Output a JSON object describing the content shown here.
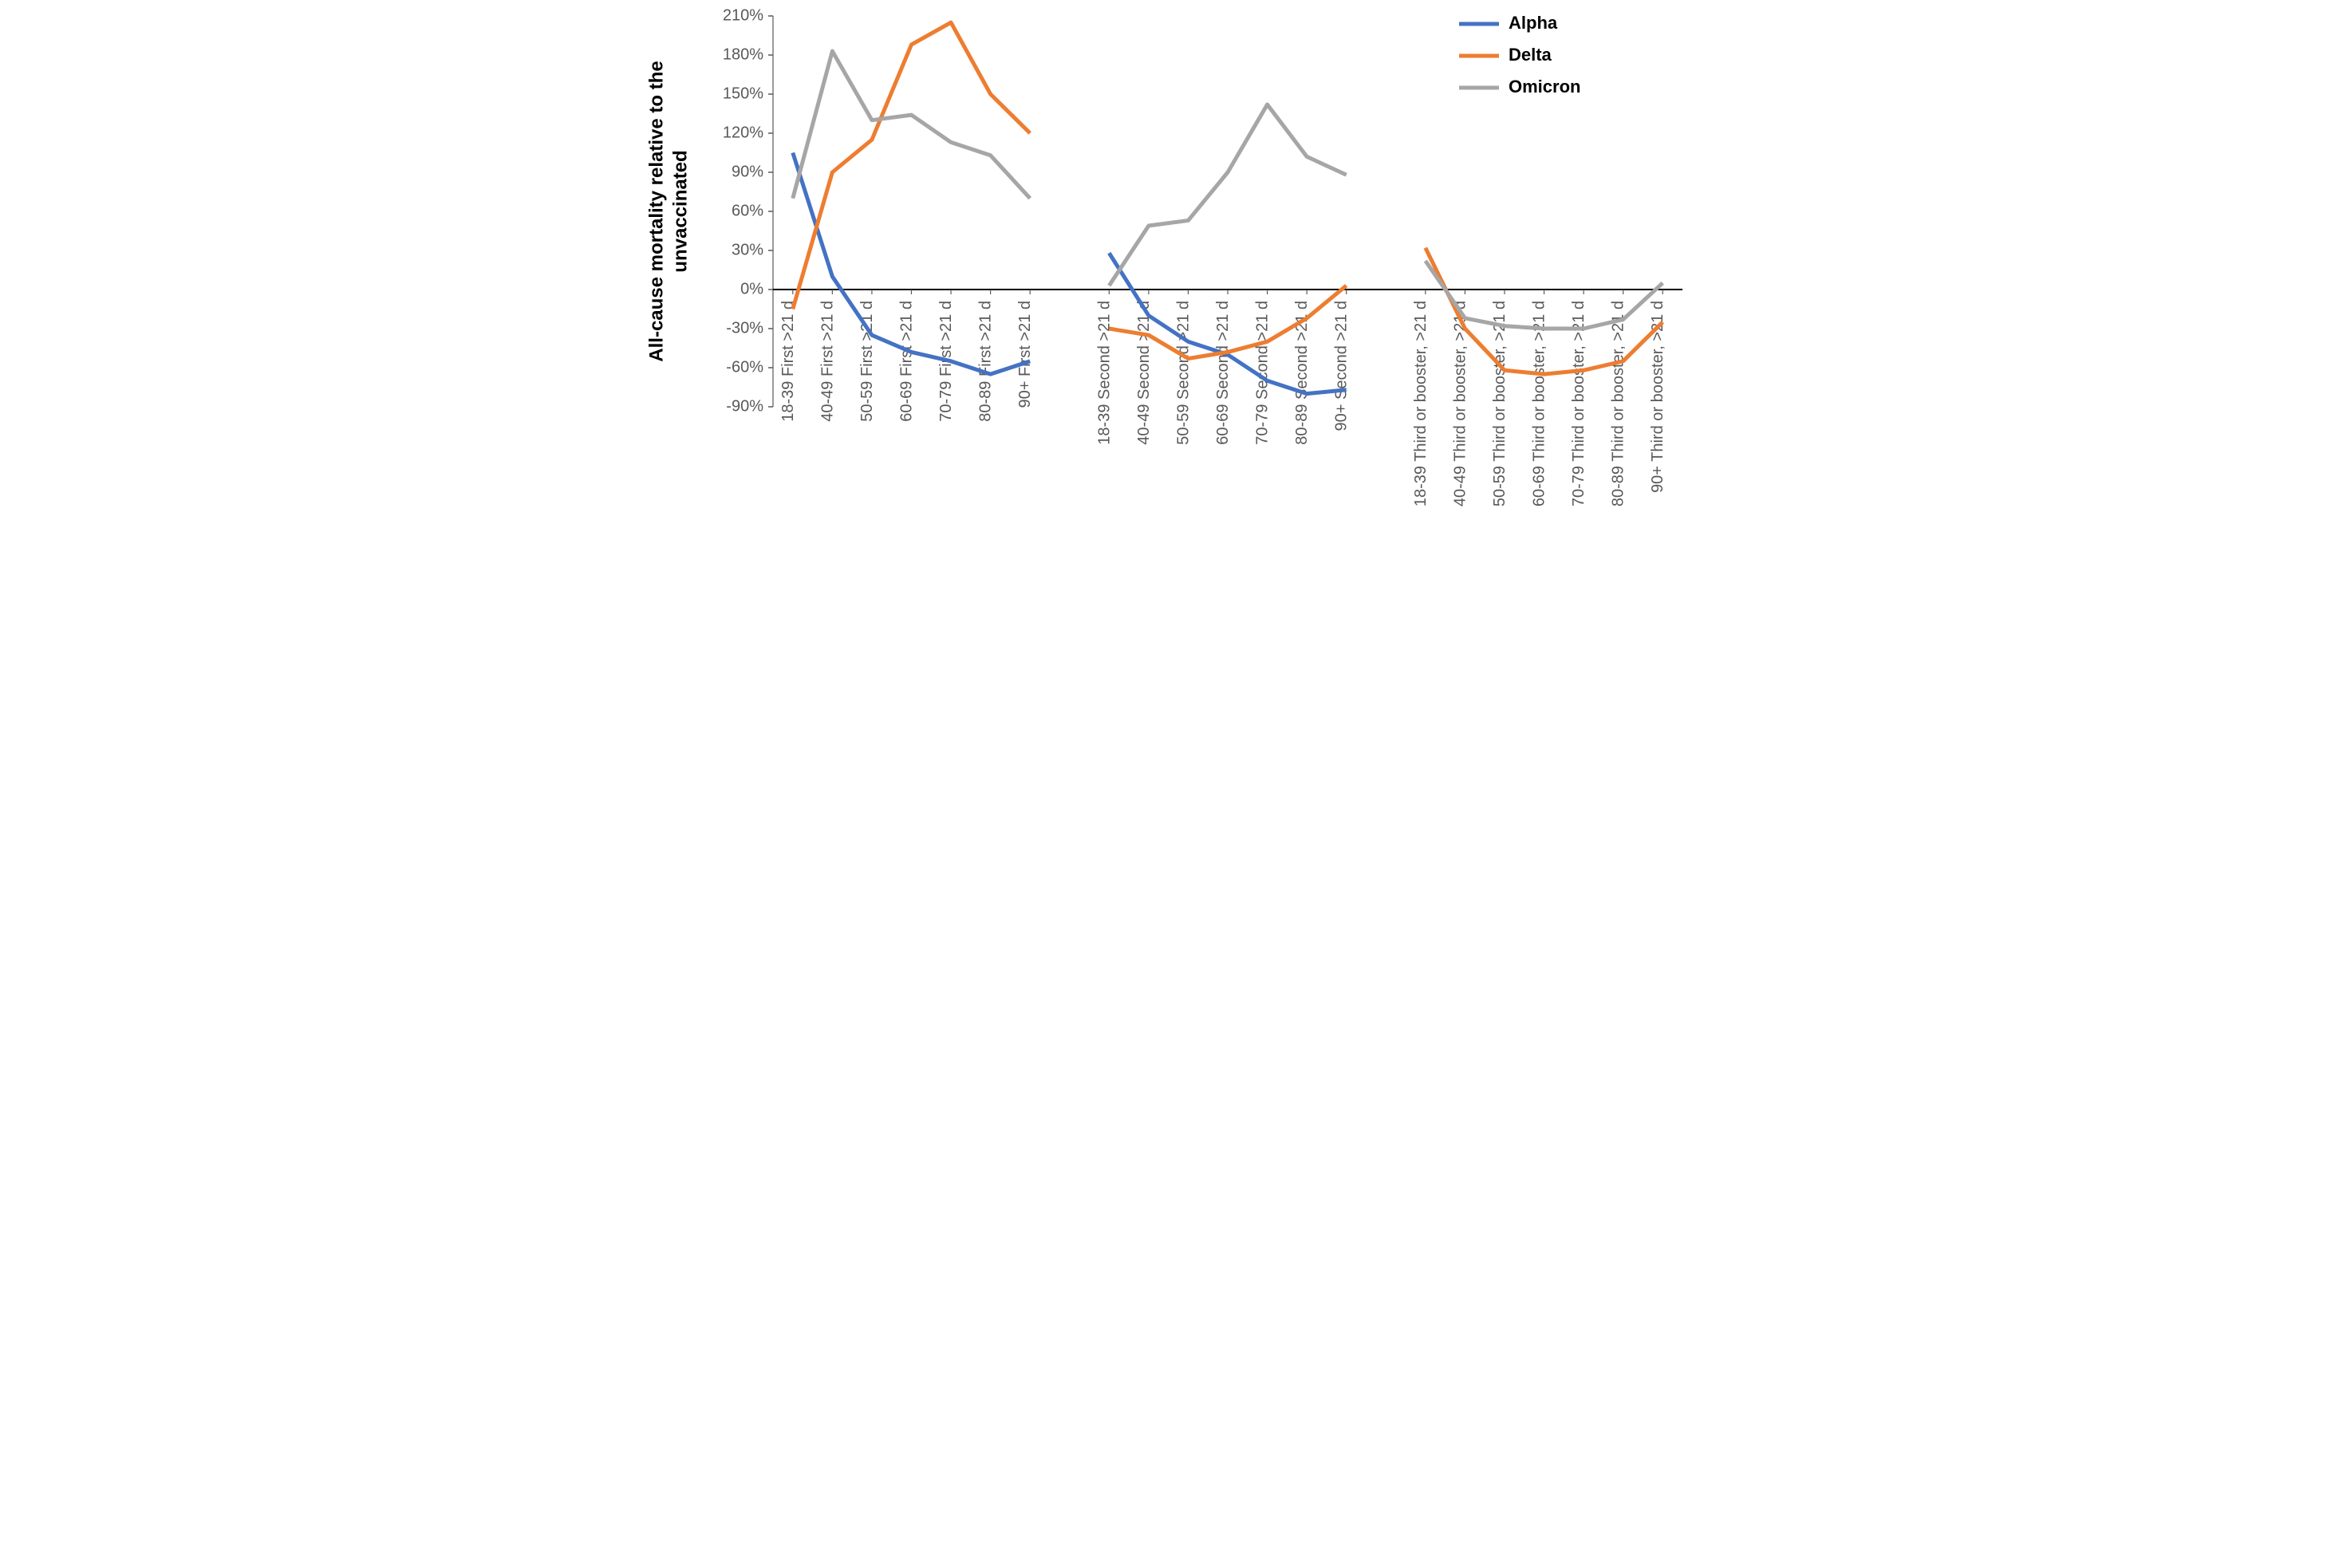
{
  "chart": {
    "type": "line",
    "y_axis_label": "All-cause mortality relative to the\nunvaccinated",
    "y_axis_label_fontsize": 24,
    "y_axis_label_fontweight": 700,
    "ylim": [
      -90,
      210
    ],
    "ytick_step": 30,
    "yticks": [
      -90,
      -60,
      -30,
      0,
      30,
      60,
      90,
      120,
      150,
      180,
      210
    ],
    "ytick_labels": [
      "-90%",
      "-60%",
      "-30%",
      "0%",
      "30%",
      "60%",
      "90%",
      "120%",
      "150%",
      "180%",
      "210%"
    ],
    "tick_font_size": 20,
    "tick_color": "#595959",
    "axis_color": "#000000",
    "grid_color": "#d9d9d9",
    "background_color": "#ffffff",
    "line_width": 5,
    "categories": [
      "18-39 First >21 d",
      "40-49 First >21 d",
      "50-59 First >21 d",
      "60-69 First >21 d",
      "70-79 First >21 d",
      "80-89 First >21 d",
      "90+ First >21 d",
      null,
      "18-39 Second >21 d",
      "40-49 Second >21 d",
      "50-59 Second >21 d",
      "60-69 Second >21 d",
      "70-79 Second >21 d",
      "80-89 Second >21 d",
      "90+ Second >21 d",
      null,
      "18-39 Third or booster, >21 d",
      "40-49 Third or booster, >21 d",
      "50-59 Third or booster, >21 d",
      "60-69 Third or booster, >21 d",
      "70-79 Third or booster, >21 d",
      "80-89 Third or booster, >21 d",
      "90+ Third or booster, >21 d"
    ],
    "series": [
      {
        "name": "Alpha",
        "color": "#4472c4",
        "values": [
          105,
          10,
          -35,
          -48,
          -55,
          -65,
          -55,
          null,
          28,
          -20,
          -40,
          -50,
          -70,
          -80,
          -77,
          null,
          null,
          null,
          null,
          null,
          null,
          null,
          null
        ]
      },
      {
        "name": "Delta",
        "color": "#ed7d31",
        "values": [
          -15,
          90,
          115,
          188,
          205,
          150,
          120,
          null,
          -30,
          -35,
          -53,
          -48,
          -40,
          -22,
          3,
          null,
          32,
          -30,
          -62,
          -65,
          -62,
          -55,
          -25
        ]
      },
      {
        "name": "Omicron",
        "color": "#a6a6a6",
        "values": [
          70,
          183,
          130,
          134,
          113,
          103,
          70,
          null,
          3,
          49,
          53,
          90,
          142,
          102,
          88,
          null,
          22,
          -22,
          -28,
          -30,
          -30,
          -23,
          5
        ]
      }
    ],
    "legend": {
      "position": "top-right",
      "font_size": 22,
      "font_weight": 700,
      "box_border": "none",
      "line_sample_width": 5,
      "line_sample_length": 50
    }
  }
}
